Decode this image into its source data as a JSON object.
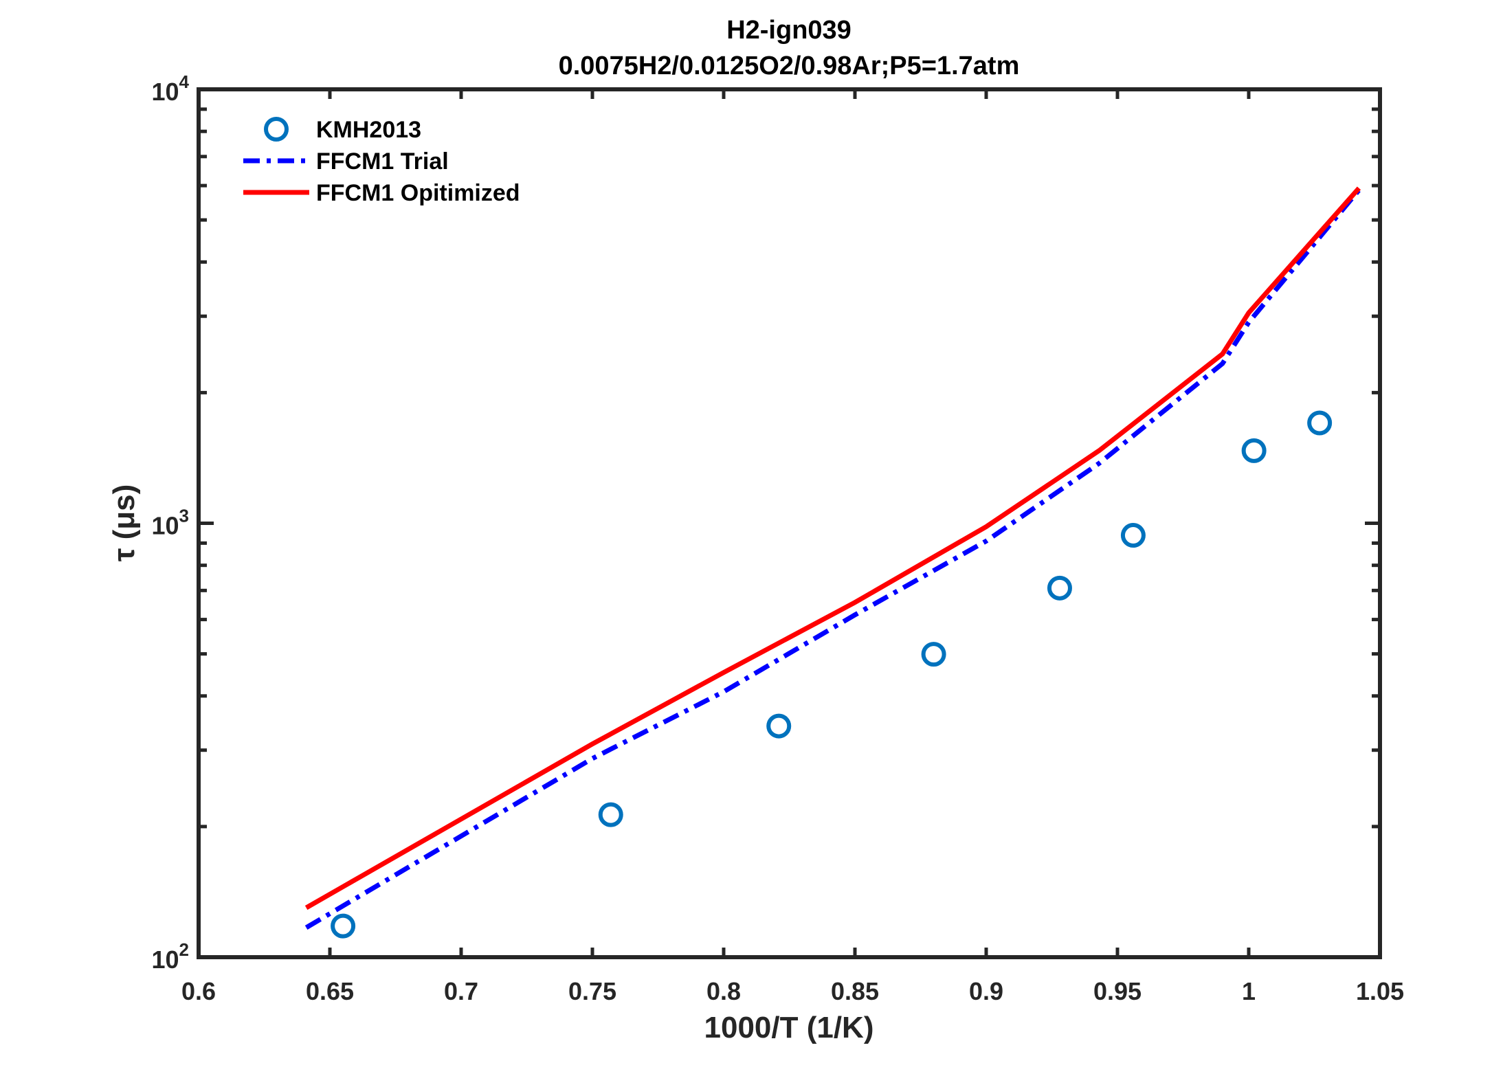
{
  "chart_data": {
    "type": "line",
    "title": "H2-ign039",
    "subtitle": "0.0075H2/0.0125O2/0.98Ar;P5=1.7atm",
    "xlabel": "1000/T (1/K)",
    "ylabel": "τ (μs)",
    "xlim": [
      0.6,
      1.05
    ],
    "ylim": [
      100,
      10000
    ],
    "yscale": "log",
    "grid": false,
    "legend_placement": "top-left",
    "xticks": [
      "0.6",
      "0.65",
      "0.7",
      "0.75",
      "0.8",
      "0.85",
      "0.9",
      "0.95",
      "1",
      "1.05"
    ],
    "yticks": [
      {
        "base": "10",
        "exp": "2",
        "value": 100
      },
      {
        "base": "10",
        "exp": "3",
        "value": 1000
      },
      {
        "base": "10",
        "exp": "4",
        "value": 10000
      }
    ],
    "series": [
      {
        "name": "KMH2013",
        "kind": "markers",
        "color": "#0072BD",
        "x": [
          0.655,
          0.757,
          0.821,
          0.88,
          0.928,
          0.956,
          1.002,
          1.027
        ],
        "y": [
          118,
          213,
          341,
          499,
          709,
          938,
          1470,
          1703
        ]
      },
      {
        "name": "FFCM1 Trial",
        "kind": "dashdot",
        "color": "#0000FF",
        "x": [
          0.641,
          0.75,
          0.8,
          0.85,
          0.9,
          0.943,
          0.99,
          1.0,
          1.042
        ],
        "y": [
          117,
          287,
          409,
          615,
          910,
          1374,
          2333,
          2905,
          5860
        ]
      },
      {
        "name": "FFCM1 Opitimized",
        "kind": "solid",
        "color": "#FF0000",
        "x": [
          0.641,
          0.75,
          0.8,
          0.85,
          0.9,
          0.943,
          0.99,
          1.0,
          1.042
        ],
        "y": [
          130,
          310,
          453,
          657,
          982,
          1470,
          2455,
          3055,
          5920
        ]
      }
    ]
  }
}
